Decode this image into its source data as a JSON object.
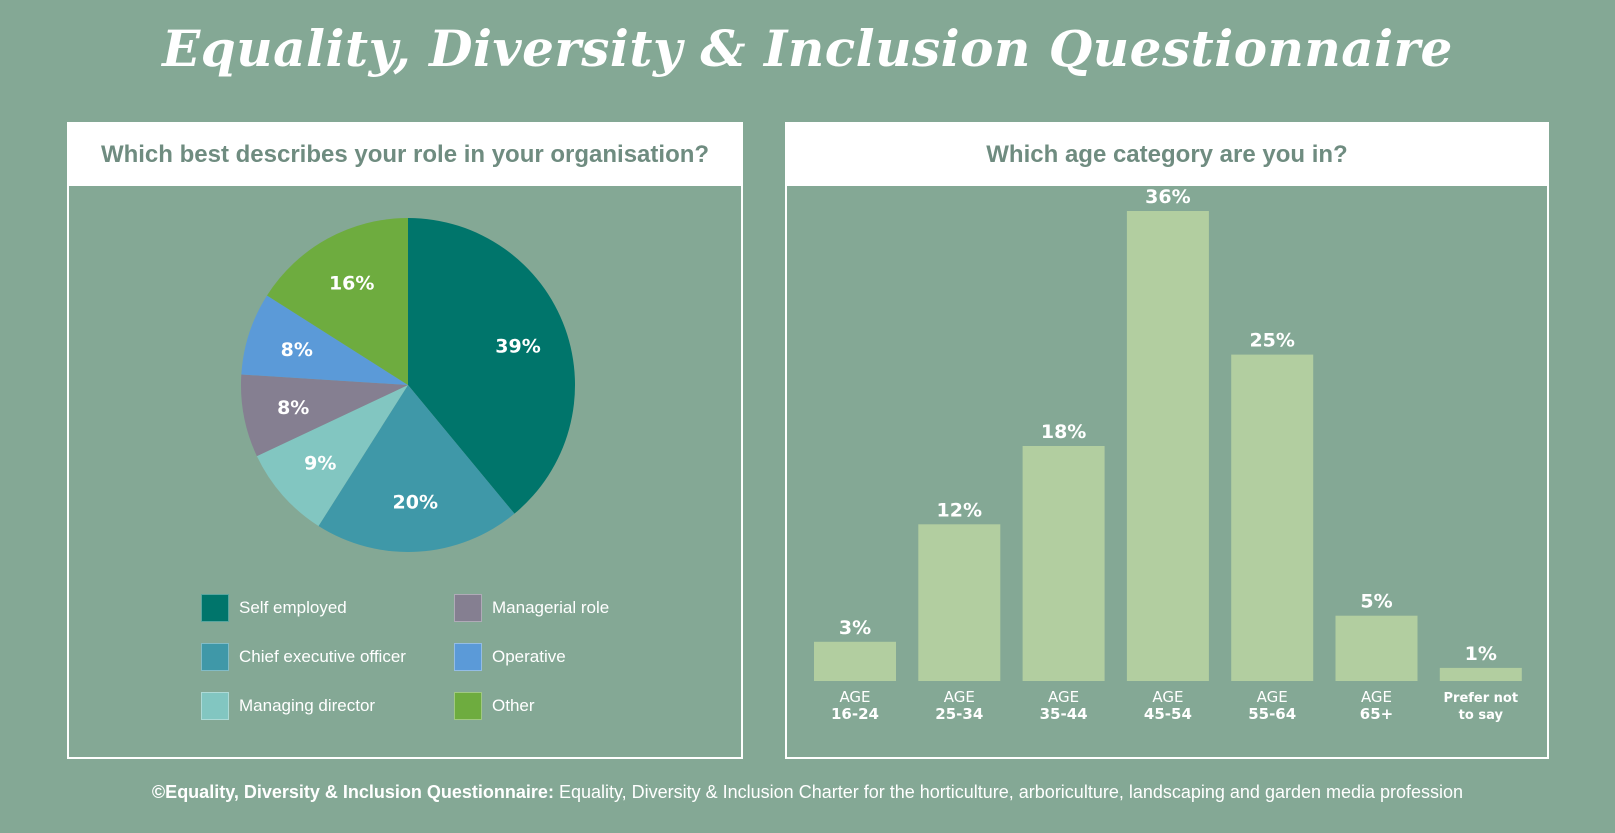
{
  "title": "Equality, Diversity & Inclusion Questionnaire",
  "footer": {
    "bold": "©Equality, Diversity & Inclusion Questionnaire:",
    "text": " Equality, Diversity & Inclusion Charter for the horticulture, arboriculture, landscaping and garden media profession"
  },
  "chart_data": [
    {
      "type": "pie",
      "title": "Which best describes your role in your organisation?",
      "slices": [
        {
          "label": "Self employed",
          "value": 39,
          "display": "39%",
          "color": "#00756b"
        },
        {
          "label": "Chief executive officer",
          "value": 20,
          "display": "20%",
          "color": "#3f98a8"
        },
        {
          "label": "Managing director",
          "value": 9,
          "display": "9%",
          "color": "#82c6c1"
        },
        {
          "label": "Managerial role",
          "value": 8,
          "display": "8%",
          "color": "#857f91"
        },
        {
          "label": "Operative",
          "value": 8,
          "display": "8%",
          "color": "#5b9ad8"
        },
        {
          "label": "Other",
          "value": 16,
          "display": "16%",
          "color": "#6eac3f"
        }
      ],
      "legend_order": [
        "Self employed",
        "Managerial role",
        "Chief executive officer",
        "Operative",
        "Managing director",
        "Other"
      ]
    },
    {
      "type": "bar",
      "title": "Which age category are you in?",
      "bar_color": "#b2cea0",
      "categories": [
        {
          "line1": "AGE",
          "line2": "16-24"
        },
        {
          "line1": "AGE",
          "line2": "25-34"
        },
        {
          "line1": "AGE",
          "line2": "35-44"
        },
        {
          "line1": "AGE",
          "line2": "45-54"
        },
        {
          "line1": "AGE",
          "line2": "55-64"
        },
        {
          "line1": "AGE",
          "line2": "65+"
        },
        {
          "line1": "Prefer not",
          "line2": "to say"
        }
      ],
      "values": [
        3,
        12,
        18,
        36,
        25,
        5,
        1
      ],
      "labels": [
        "3%",
        "12%",
        "18%",
        "36%",
        "25%",
        "5%",
        "1%"
      ]
    }
  ]
}
